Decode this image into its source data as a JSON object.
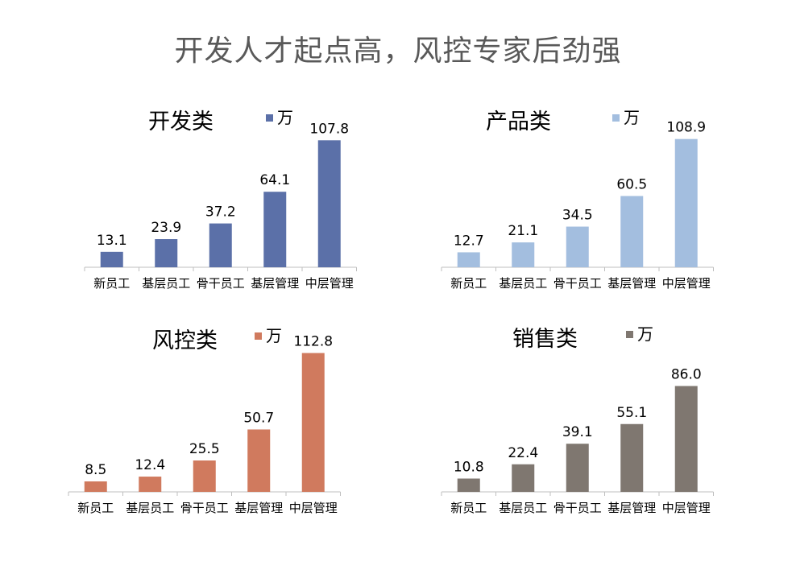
{
  "page_title": "开发人才起点高，风控专家后劲强",
  "chart_data": [
    {
      "type": "bar",
      "title": "开发类",
      "categories": [
        "新员工",
        "基层员工",
        "骨干员工",
        "基层管理",
        "中层管理"
      ],
      "series": [
        {
          "name": "万",
          "values": [
            13.1,
            23.9,
            37.2,
            64.1,
            107.8
          ],
          "labels": [
            "13.1",
            "23.9",
            "37.2",
            "64.1",
            "107.8"
          ]
        }
      ],
      "color": "#5b70a8",
      "ylim": [
        0,
        120
      ],
      "grid": false,
      "legend": "top"
    },
    {
      "type": "bar",
      "title": "产品类",
      "categories": [
        "新员工",
        "基层员工",
        "骨干员工",
        "基层管理",
        "中层管理"
      ],
      "series": [
        {
          "name": "万",
          "values": [
            12.7,
            21.1,
            34.5,
            60.5,
            108.9
          ],
          "labels": [
            "12.7",
            "21.1",
            "34.5",
            "60.5",
            "108.9"
          ]
        }
      ],
      "color": "#a3bedf",
      "ylim": [
        0,
        120
      ],
      "grid": false,
      "legend": "top"
    },
    {
      "type": "bar",
      "title": "风控类",
      "categories": [
        "新员工",
        "基层员工",
        "骨干员工",
        "基层管理",
        "中层管理"
      ],
      "series": [
        {
          "name": "万",
          "values": [
            8.5,
            12.4,
            25.5,
            50.7,
            112.8
          ],
          "labels": [
            "8.5",
            "12.4",
            "25.5",
            "50.7",
            "112.8"
          ]
        }
      ],
      "color": "#d07a5e",
      "ylim": [
        0,
        120
      ],
      "grid": false,
      "legend": "top"
    },
    {
      "type": "bar",
      "title": "销售类",
      "categories": [
        "新员工",
        "基层员工",
        "骨干员工",
        "基层管理",
        "中层管理"
      ],
      "series": [
        {
          "name": "万",
          "values": [
            10.8,
            22.4,
            39.1,
            55.1,
            86.0
          ],
          "labels": [
            "10.8",
            "22.4",
            "39.1",
            "55.1",
            "86.0"
          ]
        }
      ],
      "color": "#7f7770",
      "ylim": [
        0,
        120
      ],
      "grid": false,
      "legend": "top"
    }
  ]
}
